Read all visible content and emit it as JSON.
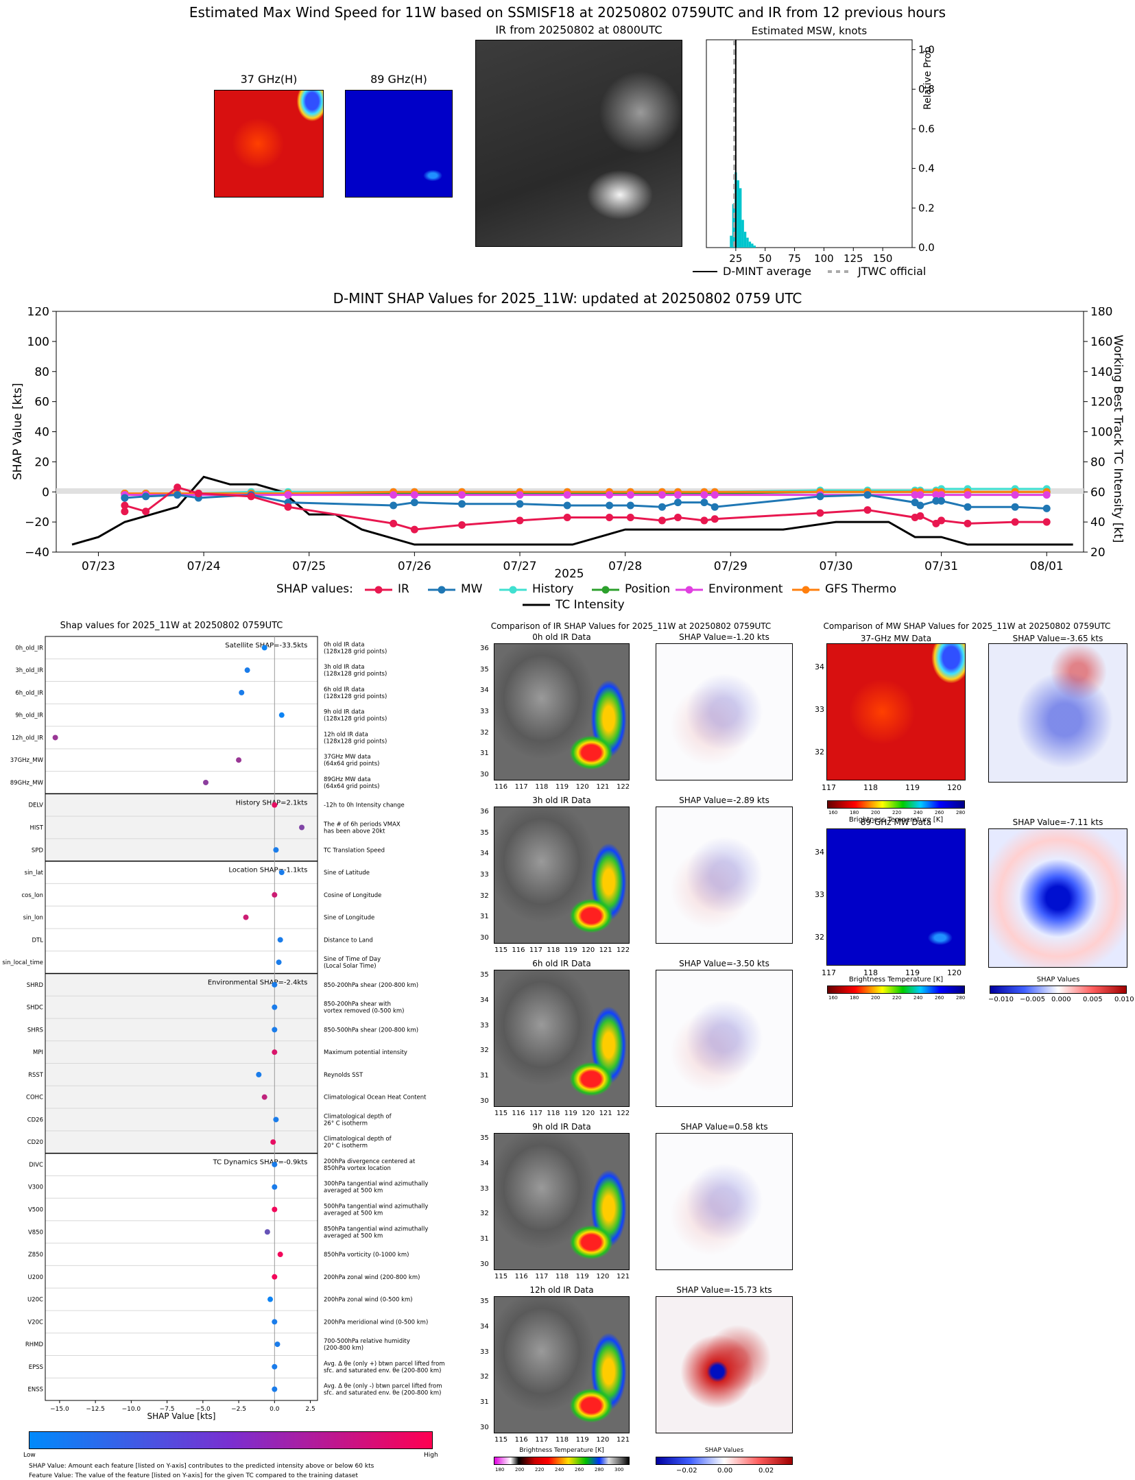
{
  "top": {
    "title": "Estimated Max Wind Speed for 11W based on SSMISF18 at 20250802 0759UTC and IR from 12 previous hours",
    "panel37": "37 GHz(H)",
    "panel89": "89 GHz(H)",
    "panelIR": "IR from 20250802 at 0800UTC",
    "hist": {
      "title": "Estimated MSW, knots",
      "ylabel": "Relative Prob",
      "xticks": [
        "25",
        "50",
        "75",
        "100",
        "125",
        "150"
      ],
      "yticks": [
        "0.0",
        "0.2",
        "0.4",
        "0.6",
        "0.8",
        "1.0"
      ],
      "legend_dmint": "D-MINT average",
      "legend_jtwc": "JTWC official"
    }
  },
  "timeseries": {
    "title": "D-MINT SHAP Values for 2025_11W: updated at 20250802 0759 UTC",
    "ylabel_left": "SHAP Value [kts]",
    "ylabel_right": "Working Best Track TC Intensity [kt]",
    "xlabel": "2025",
    "legend_prefix": "SHAP values:",
    "yticks_left": [
      "120",
      "100",
      "80",
      "60",
      "40",
      "20",
      "0",
      "−20",
      "−40"
    ],
    "yticks_right": [
      "180",
      "160",
      "140",
      "120",
      "100",
      "80",
      "60",
      "40",
      "20"
    ],
    "xticks": [
      "07/23",
      "07/24",
      "07/25",
      "07/26",
      "07/27",
      "07/28",
      "07/29",
      "07/30",
      "07/31",
      "08/01"
    ]
  },
  "bar": {
    "title": "Shap values for 2025_11W at 20250802 0759UTC",
    "xlabel": "SHAP Value [kts]",
    "xticks": [
      "−15.0",
      "−12.5",
      "−10.0",
      "−7.5",
      "−5.0",
      "−2.5",
      "0.0",
      "2.5"
    ],
    "groups": [
      "Satellite SHAP=-33.5kts",
      "History SHAP=2.1kts",
      "Location SHAP=-1.1kts",
      "Environmental SHAP=-2.4kts",
      "TC Dynamics SHAP=-0.9kts"
    ],
    "cbar_low": "Low",
    "cbar_high": "High",
    "note1": "SHAP Value: Amount each feature [listed on Y-axis] contributes to the predicted intensity above or below 60 kts",
    "note2": "Feature Value: The value of the feature [listed on Y-axis] for the given TC compared to the training dataset"
  },
  "ir_compare": {
    "title": "Comparison of IR SHAP Values for 2025_11W at 20250802 0759UTC",
    "rows": [
      {
        "label": "0h old IR Data",
        "shap": "SHAP Value=-1.20 kts"
      },
      {
        "label": "3h old IR Data",
        "shap": "SHAP Value=-2.89 kts"
      },
      {
        "label": "6h old IR Data",
        "shap": "SHAP Value=-3.50 kts"
      },
      {
        "label": "9h old IR Data",
        "shap": "SHAP Value=0.58 kts"
      },
      {
        "label": "12h old IR Data",
        "shap": "SHAP Value=-15.73 kts"
      }
    ],
    "cbar_bt": "Brightness Temperature [K]",
    "cbar_bt_ticks": [
      "180",
      "200",
      "220",
      "240",
      "260",
      "280",
      "300"
    ],
    "cbar_shap": "SHAP Values",
    "cbar_shap_ticks": [
      "−0.02",
      "0.00",
      "0.02"
    ]
  },
  "mw_compare": {
    "title": "Comparison of MW SHAP Values for 2025_11W at 20250802 0759UTC",
    "r37": {
      "label": "37-GHz MW Data",
      "shap": "SHAP Value=-3.65 kts"
    },
    "r89": {
      "label": "89-GHz MW Data",
      "shap": "SHAP Value=-7.11 kts"
    },
    "cbar_bt": "Brightness Temperature [K]",
    "cbar_bt_ticks": [
      "160",
      "180",
      "200",
      "220",
      "240",
      "260",
      "280"
    ],
    "cbar_shap": "SHAP Values",
    "cbar_shap_ticks": [
      "−0.010",
      "−0.005",
      "0.000",
      "0.005",
      "0.010"
    ],
    "yticks": [
      "34",
      "33",
      "32"
    ],
    "xticks": [
      "117",
      "118",
      "119",
      "120"
    ]
  },
  "chart_data": [
    {
      "type": "bar",
      "name": "Estimated MSW histogram",
      "title": "Estimated MSW, knots",
      "xlim": [
        0,
        175
      ],
      "ylim": [
        0,
        1.05
      ],
      "ylabel": "Relative Prob",
      "bin_edges": [
        20,
        22,
        24,
        26,
        28,
        30,
        32,
        34,
        36,
        38,
        40,
        42
      ],
      "values": [
        0.06,
        0.22,
        0.38,
        0.34,
        0.3,
        0.14,
        0.08,
        0.05,
        0.03,
        0.02,
        0.01
      ],
      "dmint_average": 25,
      "jtwc_official": 24
    },
    {
      "type": "line",
      "title": "D-MINT SHAP Values for 2025_11W: updated at 20250802 0759 UTC",
      "xlabel": "2025",
      "ylabel": "SHAP Value [kts]",
      "y2label": "Working Best Track TC Intensity [kt]",
      "ylim": [
        -40,
        120
      ],
      "y2lim": [
        20,
        180
      ],
      "x_ticks": [
        "07/23",
        "07/24",
        "07/25",
        "07/26",
        "07/27",
        "07/28",
        "07/29",
        "07/30",
        "07/31",
        "08/01"
      ],
      "shap_x": [
        23.25,
        23.25,
        23.45,
        23.75,
        23.95,
        24.45,
        24.8,
        25.8,
        26.0,
        26.45,
        27.0,
        27.45,
        27.85,
        28.05,
        28.35,
        28.5,
        28.75,
        28.85,
        29.85,
        30.3,
        30.75,
        30.8,
        30.95,
        31.0,
        31.25,
        31.7,
        32.0
      ],
      "tc_x": [
        22.75,
        23.0,
        23.25,
        23.5,
        23.75,
        24.0,
        24.25,
        24.5,
        24.75,
        25.0,
        25.25,
        25.5,
        25.75,
        26.0,
        26.5,
        27.0,
        27.5,
        28.0,
        28.5,
        29.0,
        29.25,
        29.5,
        30.0,
        30.25,
        30.5,
        30.75,
        31.0,
        31.25,
        31.5,
        32.0,
        32.25
      ],
      "series": [
        {
          "name": "IR",
          "color": "#e8174f",
          "values": [
            -13,
            -9,
            -13,
            3,
            -1,
            -3,
            -10,
            -21,
            -25,
            -22,
            -19,
            -17,
            -17,
            -17,
            -19,
            -17,
            -19,
            -18,
            -14,
            -12,
            -17,
            -16,
            -21,
            -19,
            -21,
            -20,
            -20
          ]
        },
        {
          "name": "MW",
          "color": "#1f77b4",
          "values": [
            -4,
            -4,
            -3,
            -2,
            -4,
            -2,
            -7,
            -9,
            -7,
            -8,
            -8,
            -9,
            -9,
            -9,
            -10,
            -7,
            -7,
            -10,
            -3,
            -2,
            -7,
            -9,
            -6,
            -6,
            -10,
            -10,
            -11
          ]
        },
        {
          "name": "History",
          "color": "#40e0d0",
          "values": [
            -1,
            -1,
            -1,
            -1,
            -1,
            0,
            0,
            0,
            0,
            0,
            0,
            0,
            0,
            0,
            0,
            0,
            0,
            0,
            1,
            1,
            1,
            1,
            1,
            2,
            2,
            2,
            2
          ]
        },
        {
          "name": "Position",
          "color": "#2ca02c",
          "values": [
            -1,
            -1,
            -1,
            -1,
            -1,
            -1,
            -1,
            -1,
            -1,
            -1,
            -1,
            -1,
            -1,
            -1,
            -1,
            -1,
            -1,
            -1,
            0,
            0,
            0,
            0,
            0,
            0,
            0,
            0,
            0
          ]
        },
        {
          "name": "Environment",
          "color": "#e040e0",
          "values": [
            -2,
            -2,
            -2,
            -2,
            -2,
            -2,
            -2,
            -2,
            -2,
            -2,
            -2,
            -2,
            -2,
            -2,
            -2,
            -2,
            -2,
            -2,
            -2,
            -2,
            -2,
            -2,
            -2,
            -2,
            -2,
            -2,
            -2
          ]
        },
        {
          "name": "GFS Thermo",
          "color": "#ff7f0e",
          "values": [
            -1,
            -1,
            -1,
            -1,
            -1,
            -1,
            -1,
            0,
            0,
            0,
            0,
            0,
            0,
            0,
            0,
            0,
            0,
            0,
            0,
            0,
            0,
            0,
            0,
            0,
            0,
            0,
            0
          ]
        }
      ],
      "tc_intensity": {
        "name": "TC Intensity",
        "color": "#000000",
        "values": [
          25,
          30,
          40,
          45,
          50,
          70,
          65,
          65,
          60,
          45,
          45,
          35,
          30,
          25,
          25,
          25,
          25,
          35,
          35,
          35,
          35,
          35,
          40,
          40,
          40,
          30,
          30,
          25,
          25,
          25,
          25
        ]
      }
    },
    {
      "type": "scatter",
      "title": "Shap values for 2025_11W at 20250802 0759UTC",
      "xlabel": "SHAP Value [kts]",
      "xlim": [
        -16,
        3
      ],
      "features": [
        {
          "name": "0h_old_IR",
          "desc": "0h old IR data\n(128x128 grid points)",
          "shap": -0.7,
          "fv": 0.05
        },
        {
          "name": "3h_old_IR",
          "desc": "3h old IR data\n(128x128 grid points)",
          "shap": -1.9,
          "fv": 0.1
        },
        {
          "name": "6h_old_IR",
          "desc": "6h old IR data\n(128x128 grid points)",
          "shap": -2.3,
          "fv": 0.1
        },
        {
          "name": "9h_old_IR",
          "desc": "9h old IR data\n(128x128 grid points)",
          "shap": 0.5,
          "fv": 0.05
        },
        {
          "name": "12h_old_IR",
          "desc": "12h old IR data\n(128x128 grid points)",
          "shap": -15.3,
          "fv": 0.6
        },
        {
          "name": "37GHz_MW",
          "desc": "37GHz MW data\n(64x64 grid points)",
          "shap": -2.5,
          "fv": 0.6
        },
        {
          "name": "89GHz_MW",
          "desc": "89GHz MW data\n(64x64 grid points)",
          "shap": -4.8,
          "fv": 0.55
        },
        {
          "name": "DELV",
          "desc": "-12h to 0h Intensity change",
          "shap": 0.0,
          "fv": 0.9
        },
        {
          "name": "HIST",
          "desc": "The # of 6h periods VMAX\nhas been above 20kt",
          "shap": 1.9,
          "fv": 0.5
        },
        {
          "name": "SPD",
          "desc": "TC Translation Speed",
          "shap": 0.1,
          "fv": 0.1
        },
        {
          "name": "sin_lat",
          "desc": "Sine of Latitude",
          "shap": 0.5,
          "fv": 0.1
        },
        {
          "name": "cos_lon",
          "desc": "Cosine of Longitude",
          "shap": 0.0,
          "fv": 0.8
        },
        {
          "name": "sin_lon",
          "desc": "Sine of Longitude",
          "shap": -2.0,
          "fv": 0.8
        },
        {
          "name": "DTL",
          "desc": "Distance to Land",
          "shap": 0.4,
          "fv": 0.1
        },
        {
          "name": "sin_local_time",
          "desc": "Sine of Time of Day\n(Local Solar Time)",
          "shap": 0.3,
          "fv": 0.1
        },
        {
          "name": "SHRD",
          "desc": "850-200hPa shear (200-800 km)",
          "shap": 0.0,
          "fv": 0.1
        },
        {
          "name": "SHDC",
          "desc": "850-200hPa shear with\nvortex removed (0-500 km)",
          "shap": 0.0,
          "fv": 0.1
        },
        {
          "name": "SHRS",
          "desc": "850-500hPa shear (200-800 km)",
          "shap": 0.0,
          "fv": 0.1
        },
        {
          "name": "MPI",
          "desc": "Maximum potential intensity",
          "shap": 0.0,
          "fv": 0.85
        },
        {
          "name": "RSST",
          "desc": "Reynolds SST",
          "shap": -1.1,
          "fv": 0.1
        },
        {
          "name": "COHC",
          "desc": "Climatological Ocean Heat Content",
          "shap": -0.7,
          "fv": 0.75
        },
        {
          "name": "CD26",
          "desc": "Climatological depth of\n26° C isotherm",
          "shap": 0.1,
          "fv": 0.1
        },
        {
          "name": "CD20",
          "desc": "Climatological depth of\n20° C isotherm",
          "shap": -0.1,
          "fv": 0.9
        },
        {
          "name": "DIVC",
          "desc": "200hPa divergence centered at\n850hPa vortex location",
          "shap": 0.0,
          "fv": 0.1
        },
        {
          "name": "V300",
          "desc": "300hPa tangential wind azimuthally\naveraged at 500 km",
          "shap": 0.0,
          "fv": 0.1
        },
        {
          "name": "V500",
          "desc": "500hPa tangential wind azimuthally\naveraged at 500 km",
          "shap": 0.0,
          "fv": 0.95
        },
        {
          "name": "V850",
          "desc": "850hPa tangential wind azimuthally\naveraged at 500 km",
          "shap": -0.5,
          "fv": 0.4
        },
        {
          "name": "Z850",
          "desc": "850hPa vorticity (0-1000 km)",
          "shap": 0.4,
          "fv": 0.95
        },
        {
          "name": "U200",
          "desc": "200hPa zonal wind (200-800 km)",
          "shap": 0.0,
          "fv": 0.95
        },
        {
          "name": "U20C",
          "desc": "200hPa zonal wind (0-500 km)",
          "shap": -0.3,
          "fv": 0.05
        },
        {
          "name": "V20C",
          "desc": "200hPa meridional wind (0-500 km)",
          "shap": 0.0,
          "fv": 0.1
        },
        {
          "name": "RHMD",
          "desc": "700-500hPa relative humidity\n(200-800 km)",
          "shap": 0.2,
          "fv": 0.1
        },
        {
          "name": "EPSS",
          "desc": "Avg. Δ θe (only +) btwn parcel lifted from\nsfc. and saturated env. θe (200-800 km)",
          "shap": 0.0,
          "fv": 0.1
        },
        {
          "name": "ENSS",
          "desc": "Avg. Δ θe (only -) btwn parcel lifted from\nsfc. and saturated env. θe (200-800 km)",
          "shap": 0.0,
          "fv": 0.1
        }
      ]
    }
  ],
  "colors": {
    "low": "#008afb",
    "high": "#ff0051"
  }
}
